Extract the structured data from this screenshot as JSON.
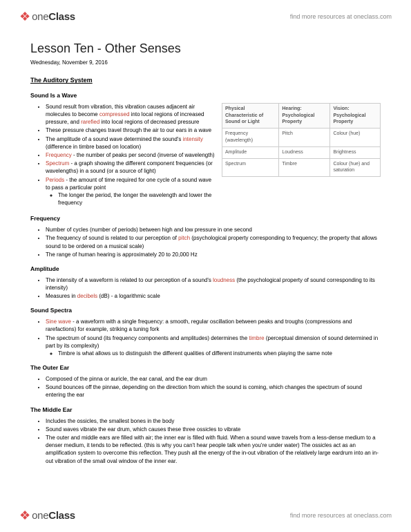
{
  "brand": {
    "logo_glyph": "❖",
    "logo_part1": "one",
    "logo_part2": "Class",
    "tagline": "find more resources at oneclass.com"
  },
  "colors": {
    "accent_red": "#c0392b",
    "logo_red": "#de4b4b",
    "text": "#000000",
    "muted": "#888888",
    "border": "#cccccc"
  },
  "doc": {
    "title": "Lesson Ten - Other Senses",
    "date": "Wednesday, November 9, 2016",
    "main_section": "The Auditory System",
    "sound_wave": {
      "heading": "Sound Is a Wave",
      "b1a": "Sound result from vibration, this vibration causes adjacent air molecules to become ",
      "b1b": "compressed",
      "b1c": " into local regions of increased pressure, and ",
      "b1d": "rarefied",
      "b1e": " into local regions of decreased pressure",
      "b2": "These pressure changes travel through the air to our ears in a wave",
      "b3a": "The amplitude of a sound wave determined the sound's ",
      "b3b": "intensity",
      "b3c": " (difference in timbre based on location)",
      "b4a": "Frequency",
      "b4b": " - the number of peaks per second (inverse of wavelength)",
      "b5a": "Spectrum",
      "b5b": " - a graph showing the different component frequencies (or wavelengths) in a sound (or a source of light)",
      "b6a": "Periods",
      "b6b": " - the amount of time required for one cycle of a sound wave to pass a particular point",
      "b6sub": "The longer the period, the longer the wavelength and lower the frequency"
    },
    "table": {
      "h1": "Physical Characteristic of Sound or Light",
      "h2": "Hearing: Psychological Property",
      "h3": "Vision: Psychological Property",
      "r1c1": "Frequency (wavelength)",
      "r1c2": "Pitch",
      "r1c3": "Colour (hue)",
      "r2c1": "Amplitude",
      "r2c2": "Loudness",
      "r2c3": "Brightness",
      "r3c1": "Spectrum",
      "r3c2": "Timbre",
      "r3c3": "Colour (hue) and saturation"
    },
    "frequency": {
      "heading": "Frequency",
      "b1": "Number of cycles (number of periods) between high and low pressure in one second",
      "b2a": "The frequency of sound is related to our perception of ",
      "b2b": "pitch",
      "b2c": " (psychological property corresponding to frequency; the property that allows sound to be ordered on a musical scale)",
      "b3": "The range of human hearing is approximately 20 to 20,000 Hz"
    },
    "amplitude": {
      "heading": "Amplitude",
      "b1a": "The intensity of a waveform is related to our perception of a sound's ",
      "b1b": "loudness",
      "b1c": " (the psychological property of sound corresponding to its intensity)",
      "b2a": "Measures in ",
      "b2b": "decibels",
      "b2c": " (dB) - a logarithmic scale"
    },
    "spectra": {
      "heading": "Sound Spectra",
      "b1a": "Sine wave",
      "b1b": " - a waveform with a single frequency: a smooth, regular oscillation between peaks and troughs (compressions and rarefactions) for example, striking a tuning fork",
      "b2a": "The spectrum of sound (its frequency components and amplitudes) determines the ",
      "b2b": "timbre",
      "b2c": " (perceptual dimension of sound determined in part by its complexity)",
      "b2sub": "Timbre is what allows us to distinguish the different qualities of different instruments when playing the same note"
    },
    "outer": {
      "heading": "The Outer Ear",
      "b1": "Composed of the pinna or auricle, the ear canal, and the ear drum",
      "b2": "Sound bounces off the pinnae, depending on the direction from which the sound is coming, which changes the spectrum of sound entering the ear"
    },
    "middle": {
      "heading": "The Middle Ear",
      "b1": "Includes the ossicles, the smallest bones in the body",
      "b2": "Sound waves vibrate the ear drum, which causes these three ossicles to vibrate",
      "b3": "The outer and middle ears are filled with air; the inner ear is filled with fluid. When a sound wave travels from a less-dense medium to a denser medium, it tends to be reflected. (this is why you can't hear people talk when you're under water) The ossicles act as an amplification system to overcome this reflection. They push all the energy of the in-out vibration of the relatively large eardrum into an in-out vibration of the small oval window of the inner ear."
    }
  }
}
